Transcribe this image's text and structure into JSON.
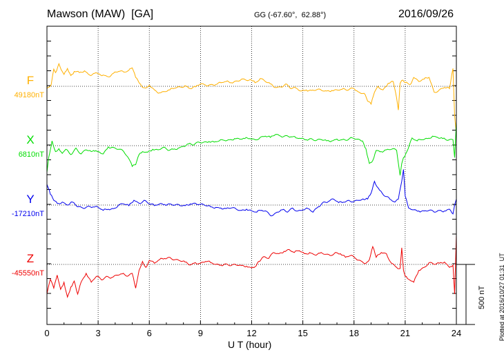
{
  "header": {
    "station": "Mawson (MAW)  [GA]",
    "coords": "GG (-67.60°,  62.88°)",
    "date": "2016/09/26"
  },
  "footer": {
    "plotted": "Plotted at 2016/10/27 01:31  UT"
  },
  "chart_data": {
    "type": "line",
    "xlabel": "U T (hour)",
    "x_ticks": [
      "0",
      "3",
      "6",
      "9",
      "12",
      "15",
      "18",
      "21",
      "24"
    ],
    "xlim": [
      0,
      24
    ],
    "scale_bar": "500 nT",
    "grid": true,
    "series": [
      {
        "name": "F",
        "baseline_label": "49180nT",
        "color": "#ffb000",
        "hours": [
          0,
          0.25,
          0.4,
          0.5,
          0.7,
          0.9,
          1.0,
          1.2,
          1.4,
          1.6,
          1.9,
          2.2,
          2.5,
          2.8,
          3.0,
          3.3,
          3.6,
          3.9,
          4.2,
          4.5,
          4.8,
          5.0,
          5.2,
          5.4,
          5.6,
          5.8,
          6.0,
          6.3,
          6.6,
          6.9,
          7.2,
          7.5,
          7.8,
          8.1,
          8.4,
          8.7,
          9.0,
          9.3,
          9.6,
          9.9,
          10.2,
          10.5,
          10.8,
          11.1,
          11.4,
          11.7,
          12.0,
          12.2,
          12.5,
          12.8,
          13.1,
          13.4,
          13.7,
          14.0,
          14.3,
          14.6,
          14.9,
          15.2,
          15.5,
          15.8,
          16.1,
          16.4,
          16.7,
          17.0,
          17.3,
          17.6,
          17.9,
          18.1,
          18.3,
          18.6,
          18.8,
          19.0,
          19.2,
          19.4,
          19.7,
          20.0,
          20.3,
          20.5,
          20.6,
          20.7,
          20.8,
          21.0,
          21.3,
          21.5,
          21.8,
          22.1,
          22.4,
          22.7,
          23.0,
          23.3,
          23.6,
          23.8,
          23.9,
          24.0
        ],
        "values": [
          -40,
          30,
          290,
          230,
          380,
          250,
          200,
          300,
          180,
          250,
          230,
          260,
          190,
          220,
          210,
          190,
          160,
          220,
          250,
          240,
          270,
          310,
          150,
          60,
          -20,
          -30,
          20,
          -60,
          -110,
          -90,
          -60,
          -30,
          -10,
          10,
          -40,
          -10,
          40,
          20,
          30,
          30,
          60,
          80,
          60,
          90,
          120,
          100,
          100,
          60,
          130,
          80,
          40,
          -20,
          -10,
          40,
          -40,
          -30,
          -80,
          -60,
          -70,
          -60,
          -70,
          -80,
          -70,
          -60,
          -50,
          -70,
          -30,
          -70,
          -100,
          -120,
          -250,
          -300,
          -100,
          0,
          -60,
          50,
          80,
          -200,
          -400,
          50,
          100,
          60,
          30,
          150,
          80,
          120,
          150,
          -100,
          -60,
          -20,
          -40,
          300,
          -500,
          -800
        ]
      },
      {
        "name": "X",
        "baseline_label": "6810nT",
        "color": "#00dd00",
        "hours": [
          0,
          0.1,
          0.3,
          0.5,
          0.7,
          0.9,
          1.1,
          1.4,
          1.7,
          2.0,
          2.3,
          2.6,
          3.0,
          3.3,
          3.6,
          3.9,
          4.2,
          4.5,
          4.8,
          5.0,
          5.2,
          5.4,
          5.6,
          5.9,
          6.2,
          6.5,
          6.8,
          7.1,
          7.4,
          7.7,
          8.0,
          8.3,
          8.6,
          8.9,
          9.2,
          9.5,
          9.8,
          10.1,
          10.4,
          10.7,
          11.0,
          11.3,
          11.6,
          11.9,
          12.2,
          12.5,
          12.8,
          13.1,
          13.4,
          13.7,
          14.0,
          14.3,
          14.6,
          14.9,
          15.2,
          15.5,
          15.8,
          16.1,
          16.4,
          16.7,
          17.0,
          17.3,
          17.6,
          17.9,
          18.2,
          18.5,
          18.7,
          18.9,
          19.1,
          19.3,
          19.6,
          19.9,
          20.2,
          20.5,
          20.7,
          20.8,
          20.9,
          21.1,
          21.4,
          21.7,
          22.0,
          22.3,
          22.6,
          22.9,
          23.2,
          23.5,
          23.8,
          23.9,
          24.0
        ],
        "values": [
          -450,
          -200,
          80,
          -100,
          -50,
          -130,
          -60,
          -150,
          -40,
          -140,
          -70,
          -100,
          -100,
          -140,
          -20,
          -30,
          -60,
          -100,
          -220,
          -350,
          -320,
          -150,
          -100,
          -110,
          -60,
          -70,
          -30,
          -80,
          -60,
          -40,
          -10,
          30,
          10,
          60,
          60,
          70,
          60,
          80,
          90,
          100,
          120,
          110,
          120,
          120,
          100,
          140,
          160,
          140,
          190,
          160,
          170,
          150,
          130,
          120,
          100,
          120,
          90,
          100,
          80,
          80,
          110,
          100,
          90,
          130,
          110,
          80,
          -50,
          -300,
          -250,
          -80,
          -100,
          -70,
          -60,
          -80,
          -500,
          -300,
          -200,
          -100,
          130,
          80,
          100,
          120,
          160,
          140,
          120,
          90,
          100,
          -200,
          400
        ]
      },
      {
        "name": "Y",
        "baseline_label": "-17210nT",
        "color": "#0000ee",
        "hours": [
          0,
          0.2,
          0.4,
          0.6,
          0.9,
          1.2,
          1.5,
          1.8,
          2.1,
          2.4,
          2.7,
          3.0,
          3.3,
          3.6,
          3.9,
          4.2,
          4.5,
          4.8,
          5.1,
          5.4,
          5.7,
          6.0,
          6.3,
          6.6,
          6.9,
          7.2,
          7.5,
          7.8,
          8.1,
          8.4,
          8.7,
          9.0,
          9.3,
          9.6,
          9.9,
          10.2,
          10.5,
          10.8,
          11.1,
          11.4,
          11.7,
          12.0,
          12.3,
          12.6,
          12.9,
          13.2,
          13.5,
          13.8,
          14.1,
          14.4,
          14.7,
          15.0,
          15.3,
          15.6,
          15.9,
          16.2,
          16.5,
          16.8,
          17.1,
          17.4,
          17.7,
          18.0,
          18.3,
          18.6,
          18.8,
          19.0,
          19.2,
          19.5,
          19.8,
          20.1,
          20.4,
          20.6,
          20.8,
          20.9,
          21.0,
          21.2,
          21.5,
          21.8,
          22.1,
          22.4,
          22.7,
          23.0,
          23.3,
          23.6,
          23.8,
          23.9,
          24.0
        ],
        "values": [
          350,
          180,
          80,
          30,
          50,
          0,
          50,
          -30,
          -50,
          -20,
          -30,
          -40,
          -90,
          -70,
          -60,
          0,
          20,
          -10,
          80,
          30,
          80,
          20,
          -10,
          20,
          10,
          20,
          0,
          -10,
          -10,
          20,
          30,
          10,
          -10,
          -30,
          -40,
          -50,
          -60,
          -50,
          -70,
          -90,
          -70,
          -100,
          -120,
          -90,
          -110,
          -180,
          -120,
          -80,
          -120,
          -50,
          -100,
          -80,
          -60,
          -120,
          -30,
          50,
          60,
          100,
          40,
          50,
          80,
          60,
          80,
          90,
          100,
          200,
          400,
          250,
          150,
          100,
          50,
          100,
          400,
          600,
          150,
          -50,
          -80,
          -100,
          -100,
          -90,
          -120,
          -90,
          -100,
          -70,
          -150,
          0,
          100
        ]
      },
      {
        "name": "Z",
        "baseline_label": "-45550nT",
        "color": "#ee0000",
        "hours": [
          0,
          0.2,
          0.4,
          0.6,
          0.8,
          1.0,
          1.2,
          1.4,
          1.6,
          1.8,
          2.0,
          2.3,
          2.6,
          2.9,
          3.2,
          3.5,
          3.8,
          4.1,
          4.4,
          4.7,
          5.0,
          5.2,
          5.4,
          5.6,
          5.8,
          6.0,
          6.3,
          6.6,
          6.9,
          7.2,
          7.5,
          7.8,
          8.1,
          8.4,
          8.7,
          9.0,
          9.3,
          9.6,
          9.9,
          10.2,
          10.5,
          10.8,
          11.1,
          11.4,
          11.7,
          12.0,
          12.2,
          12.4,
          12.7,
          13.0,
          13.3,
          13.6,
          13.9,
          14.2,
          14.5,
          14.8,
          15.1,
          15.4,
          15.7,
          16.0,
          16.3,
          16.6,
          16.9,
          17.2,
          17.5,
          17.8,
          18.1,
          18.4,
          18.7,
          18.9,
          19.1,
          19.3,
          19.6,
          19.9,
          20.2,
          20.5,
          20.7,
          20.8,
          20.9,
          21.0,
          21.2,
          21.5,
          21.8,
          22.1,
          22.4,
          22.7,
          23.0,
          23.3,
          23.6,
          23.8,
          23.9,
          24.0
        ],
        "values": [
          -500,
          -250,
          -400,
          -180,
          -420,
          -300,
          -550,
          -380,
          -280,
          -500,
          -300,
          -150,
          -300,
          -200,
          -260,
          -200,
          -220,
          -180,
          -160,
          -200,
          -150,
          -400,
          -100,
          50,
          -50,
          70,
          20,
          80,
          100,
          120,
          80,
          60,
          40,
          -10,
          30,
          20,
          50,
          30,
          0,
          -10,
          10,
          -20,
          -10,
          -20,
          -30,
          -60,
          -40,
          50,
          130,
          100,
          200,
          180,
          220,
          250,
          200,
          230,
          180,
          200,
          160,
          190,
          170,
          150,
          200,
          180,
          120,
          150,
          100,
          60,
          20,
          80,
          300,
          120,
          200,
          180,
          20,
          -50,
          -70,
          280,
          -100,
          -200,
          -250,
          -300,
          -100,
          -50,
          30,
          0,
          20,
          40,
          -50,
          -10,
          -500,
          500
        ]
      }
    ]
  }
}
